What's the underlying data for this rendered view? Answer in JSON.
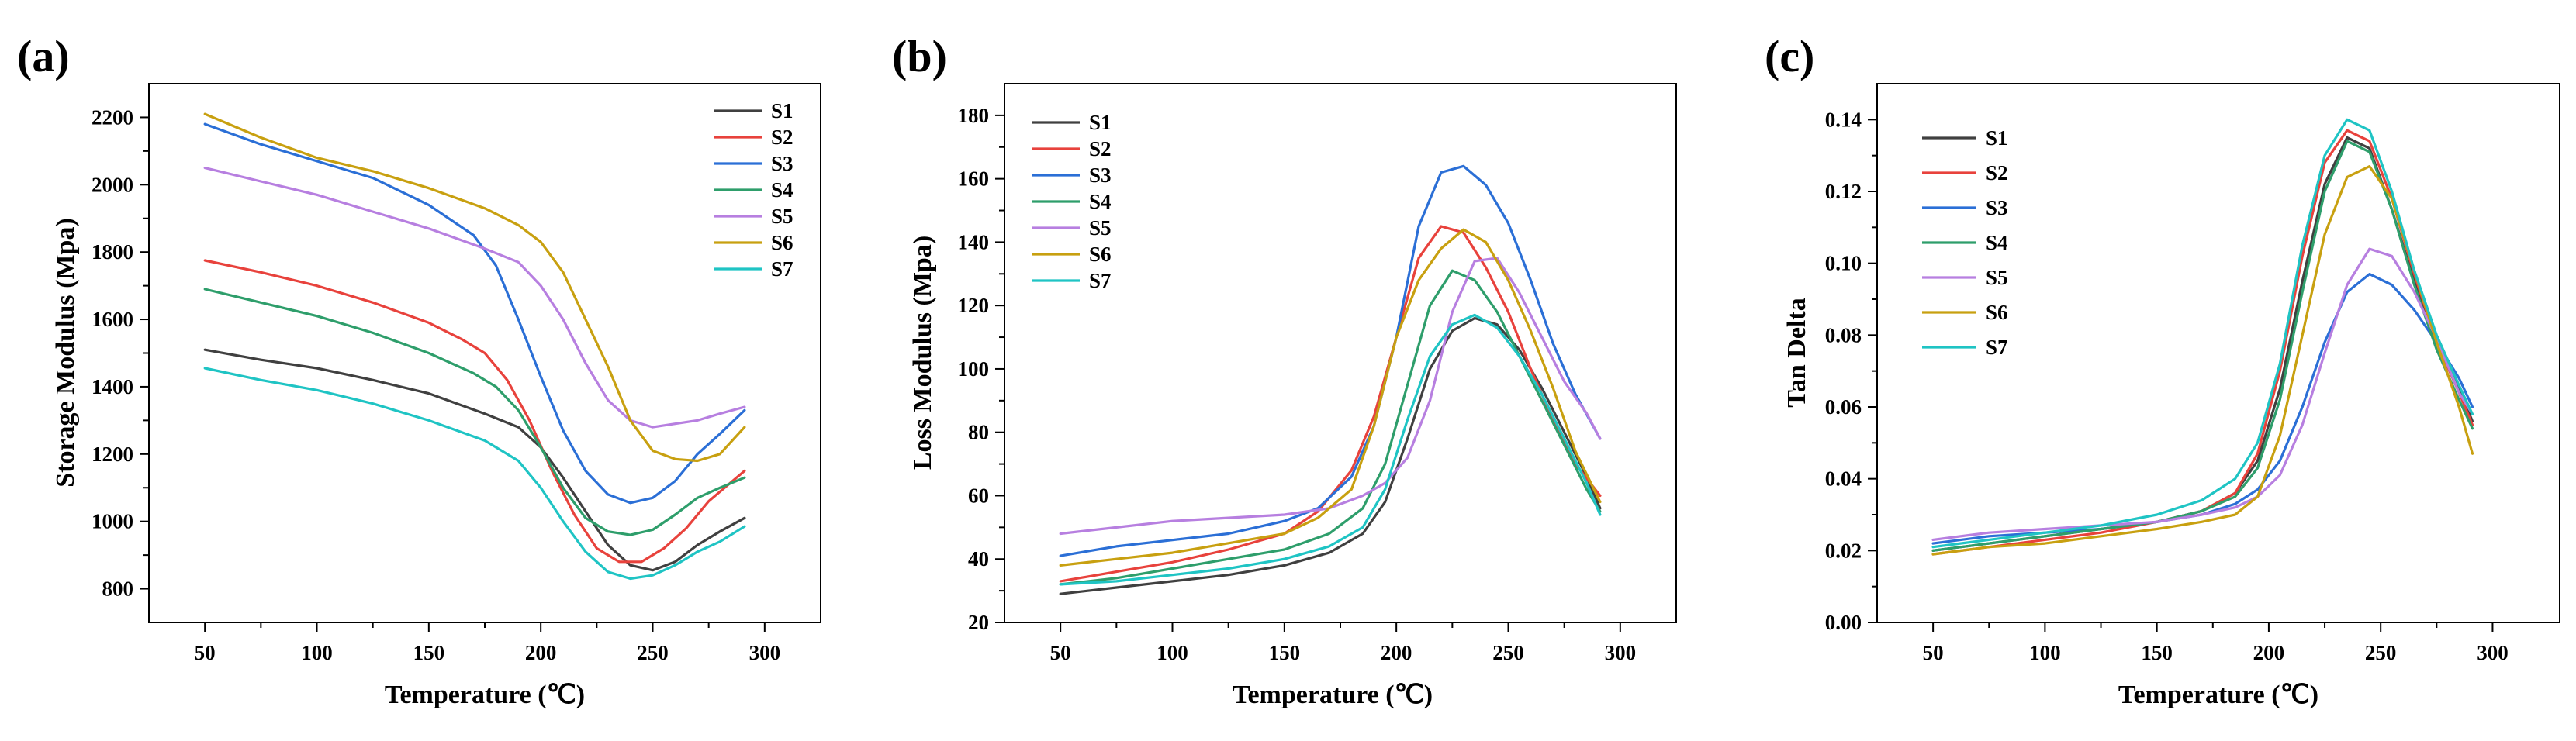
{
  "figure": {
    "panels": [
      "(a)",
      "(b)",
      "(c)"
    ]
  },
  "series_colors": {
    "S1": "#404040",
    "S2": "#e8423c",
    "S3": "#2b6fd6",
    "S4": "#2e9e6b",
    "S5": "#b77fe0",
    "S6": "#c8a010",
    "S7": "#1fc4c4"
  },
  "chart_data": [
    {
      "panel": "(a)",
      "type": "line",
      "xlabel": "Temperature (℃)",
      "ylabel": "Storage Modulus (Mpa)",
      "xlim": [
        25,
        325
      ],
      "ylim": [
        700,
        2300
      ],
      "xticks": [
        50,
        100,
        150,
        200,
        250,
        300
      ],
      "yticks": [
        800,
        1000,
        1200,
        1400,
        1600,
        1800,
        2000,
        2200
      ],
      "legend": "top-right",
      "series": [
        {
          "name": "S1",
          "x": [
            50,
            75,
            100,
            125,
            150,
            175,
            190,
            200,
            210,
            220,
            230,
            240,
            250,
            260,
            270,
            280,
            291
          ],
          "y": [
            1510,
            1480,
            1455,
            1420,
            1380,
            1320,
            1280,
            1220,
            1130,
            1030,
            930,
            870,
            855,
            880,
            930,
            970,
            1010
          ]
        },
        {
          "name": "S2",
          "x": [
            50,
            75,
            100,
            125,
            150,
            165,
            175,
            185,
            195,
            205,
            215,
            225,
            235,
            245,
            255,
            265,
            275,
            291
          ],
          "y": [
            1775,
            1740,
            1700,
            1650,
            1590,
            1540,
            1500,
            1420,
            1300,
            1150,
            1020,
            920,
            880,
            880,
            920,
            980,
            1060,
            1150
          ]
        },
        {
          "name": "S3",
          "x": [
            50,
            75,
            100,
            125,
            150,
            170,
            180,
            190,
            200,
            210,
            220,
            230,
            240,
            250,
            260,
            270,
            280,
            291
          ],
          "y": [
            2180,
            2120,
            2070,
            2020,
            1940,
            1850,
            1760,
            1600,
            1430,
            1270,
            1150,
            1080,
            1055,
            1070,
            1120,
            1200,
            1260,
            1330
          ]
        },
        {
          "name": "S4",
          "x": [
            50,
            75,
            100,
            125,
            150,
            170,
            180,
            190,
            200,
            210,
            220,
            230,
            240,
            250,
            260,
            270,
            280,
            291
          ],
          "y": [
            1690,
            1650,
            1610,
            1560,
            1500,
            1440,
            1400,
            1330,
            1220,
            1100,
            1010,
            970,
            960,
            975,
            1020,
            1070,
            1100,
            1130
          ]
        },
        {
          "name": "S5",
          "x": [
            50,
            75,
            100,
            125,
            150,
            175,
            190,
            200,
            210,
            220,
            230,
            240,
            250,
            260,
            270,
            280,
            291
          ],
          "y": [
            2050,
            2010,
            1970,
            1920,
            1870,
            1810,
            1770,
            1700,
            1600,
            1470,
            1360,
            1300,
            1280,
            1290,
            1300,
            1320,
            1340
          ]
        },
        {
          "name": "S6",
          "x": [
            50,
            75,
            100,
            125,
            150,
            175,
            190,
            200,
            210,
            220,
            230,
            240,
            250,
            260,
            270,
            280,
            291
          ],
          "y": [
            2210,
            2140,
            2080,
            2040,
            1990,
            1930,
            1880,
            1830,
            1740,
            1600,
            1460,
            1300,
            1210,
            1185,
            1180,
            1200,
            1280
          ]
        },
        {
          "name": "S7",
          "x": [
            50,
            75,
            100,
            125,
            150,
            175,
            190,
            200,
            210,
            220,
            230,
            240,
            250,
            260,
            270,
            280,
            291
          ],
          "y": [
            1455,
            1420,
            1390,
            1350,
            1300,
            1240,
            1180,
            1100,
            1000,
            910,
            850,
            830,
            840,
            870,
            910,
            940,
            985
          ]
        }
      ]
    },
    {
      "panel": "(b)",
      "type": "line",
      "xlabel": "Temperature (℃)",
      "ylabel": "Loss Modulus (Mpa)",
      "xlim": [
        25,
        325
      ],
      "ylim": [
        20,
        190
      ],
      "xticks": [
        50,
        100,
        150,
        200,
        250,
        300
      ],
      "yticks": [
        20,
        40,
        60,
        80,
        100,
        120,
        140,
        160,
        180
      ],
      "legend": "top-left",
      "series": [
        {
          "name": "S1",
          "x": [
            50,
            75,
            100,
            125,
            150,
            170,
            185,
            195,
            205,
            215,
            225,
            235,
            245,
            255,
            265,
            275,
            285,
            291
          ],
          "y": [
            29,
            31,
            33,
            35,
            38,
            42,
            48,
            58,
            78,
            100,
            112,
            116,
            114,
            106,
            94,
            80,
            66,
            56
          ]
        },
        {
          "name": "S2",
          "x": [
            50,
            75,
            100,
            125,
            150,
            165,
            180,
            190,
            200,
            210,
            220,
            230,
            240,
            250,
            260,
            270,
            280,
            291
          ],
          "y": [
            33,
            36,
            39,
            43,
            48,
            55,
            68,
            85,
            110,
            135,
            145,
            143,
            132,
            118,
            100,
            84,
            70,
            60
          ]
        },
        {
          "name": "S3",
          "x": [
            50,
            75,
            100,
            125,
            150,
            165,
            180,
            190,
            200,
            210,
            220,
            230,
            240,
            250,
            260,
            270,
            280,
            291
          ],
          "y": [
            41,
            44,
            46,
            48,
            52,
            56,
            66,
            82,
            110,
            145,
            162,
            164,
            158,
            146,
            128,
            108,
            92,
            78
          ]
        },
        {
          "name": "S4",
          "x": [
            50,
            75,
            100,
            125,
            150,
            170,
            185,
            195,
            205,
            215,
            225,
            235,
            245,
            255,
            265,
            275,
            285,
            291
          ],
          "y": [
            32,
            34,
            37,
            40,
            43,
            48,
            56,
            70,
            95,
            120,
            131,
            128,
            118,
            104,
            90,
            76,
            62,
            55
          ]
        },
        {
          "name": "S5",
          "x": [
            50,
            75,
            100,
            125,
            150,
            170,
            185,
            195,
            205,
            215,
            225,
            235,
            245,
            255,
            265,
            275,
            285,
            291
          ],
          "y": [
            48,
            50,
            52,
            53,
            54,
            56,
            60,
            64,
            72,
            90,
            118,
            134,
            135,
            124,
            110,
            96,
            86,
            78
          ]
        },
        {
          "name": "S6",
          "x": [
            50,
            75,
            100,
            125,
            150,
            165,
            180,
            190,
            200,
            210,
            220,
            230,
            240,
            250,
            260,
            270,
            280,
            291
          ],
          "y": [
            38,
            40,
            42,
            45,
            48,
            53,
            62,
            82,
            110,
            128,
            138,
            144,
            140,
            128,
            112,
            94,
            74,
            58
          ]
        },
        {
          "name": "S7",
          "x": [
            50,
            75,
            100,
            125,
            150,
            170,
            185,
            195,
            205,
            215,
            225,
            235,
            245,
            255,
            265,
            275,
            285,
            291
          ],
          "y": [
            32,
            33,
            35,
            37,
            40,
            44,
            50,
            62,
            84,
            104,
            114,
            117,
            113,
            104,
            92,
            78,
            64,
            54
          ]
        }
      ]
    },
    {
      "panel": "(c)",
      "type": "line",
      "xlabel": "Temperature (℃)",
      "ylabel": "Tan Delta",
      "xlim": [
        25,
        330
      ],
      "ylim": [
        0.0,
        0.15
      ],
      "xticks": [
        50,
        100,
        150,
        200,
        250,
        300
      ],
      "yticks": [
        "0.00",
        "0.02",
        "0.04",
        "0.06",
        "0.08",
        "0.10",
        "0.12",
        "0.14"
      ],
      "legend": "top-left",
      "series": [
        {
          "name": "S1",
          "x": [
            50,
            75,
            100,
            125,
            150,
            170,
            185,
            195,
            205,
            215,
            225,
            235,
            245,
            255,
            265,
            275,
            285,
            291
          ],
          "y": [
            0.02,
            0.022,
            0.024,
            0.026,
            0.028,
            0.031,
            0.036,
            0.045,
            0.065,
            0.095,
            0.122,
            0.135,
            0.132,
            0.115,
            0.095,
            0.078,
            0.065,
            0.056
          ]
        },
        {
          "name": "S2",
          "x": [
            50,
            75,
            100,
            125,
            150,
            170,
            185,
            195,
            205,
            215,
            225,
            235,
            245,
            255,
            265,
            275,
            285,
            291
          ],
          "y": [
            0.019,
            0.021,
            0.023,
            0.025,
            0.028,
            0.031,
            0.036,
            0.047,
            0.07,
            0.102,
            0.128,
            0.137,
            0.134,
            0.118,
            0.097,
            0.078,
            0.064,
            0.055
          ]
        },
        {
          "name": "S3",
          "x": [
            50,
            75,
            100,
            125,
            150,
            170,
            185,
            195,
            205,
            215,
            225,
            235,
            245,
            255,
            265,
            275,
            285,
            291
          ],
          "y": [
            0.022,
            0.024,
            0.025,
            0.026,
            0.028,
            0.03,
            0.033,
            0.037,
            0.045,
            0.06,
            0.078,
            0.092,
            0.097,
            0.094,
            0.087,
            0.078,
            0.068,
            0.06
          ]
        },
        {
          "name": "S4",
          "x": [
            50,
            75,
            100,
            125,
            150,
            170,
            185,
            195,
            205,
            215,
            225,
            235,
            245,
            255,
            265,
            275,
            285,
            291
          ],
          "y": [
            0.02,
            0.022,
            0.024,
            0.026,
            0.028,
            0.031,
            0.035,
            0.043,
            0.062,
            0.092,
            0.12,
            0.134,
            0.131,
            0.115,
            0.094,
            0.076,
            0.062,
            0.054
          ]
        },
        {
          "name": "S5",
          "x": [
            50,
            75,
            100,
            125,
            150,
            170,
            185,
            195,
            205,
            215,
            225,
            235,
            245,
            255,
            265,
            275,
            285,
            291
          ],
          "y": [
            0.023,
            0.025,
            0.026,
            0.027,
            0.028,
            0.03,
            0.032,
            0.035,
            0.041,
            0.055,
            0.075,
            0.094,
            0.104,
            0.102,
            0.092,
            0.079,
            0.064,
            0.058
          ]
        },
        {
          "name": "S6",
          "x": [
            50,
            75,
            100,
            125,
            150,
            170,
            185,
            195,
            205,
            215,
            225,
            235,
            245,
            255,
            265,
            275,
            285,
            291
          ],
          "y": [
            0.019,
            0.021,
            0.022,
            0.024,
            0.026,
            0.028,
            0.03,
            0.035,
            0.052,
            0.08,
            0.108,
            0.124,
            0.127,
            0.118,
            0.098,
            0.078,
            0.06,
            0.047
          ]
        },
        {
          "name": "S7",
          "x": [
            50,
            75,
            100,
            125,
            150,
            170,
            185,
            195,
            205,
            215,
            225,
            235,
            245,
            255,
            265,
            275,
            285,
            291
          ],
          "y": [
            0.021,
            0.023,
            0.025,
            0.027,
            0.03,
            0.034,
            0.04,
            0.05,
            0.072,
            0.105,
            0.13,
            0.14,
            0.137,
            0.12,
            0.098,
            0.08,
            0.066,
            0.058
          ]
        }
      ]
    }
  ]
}
